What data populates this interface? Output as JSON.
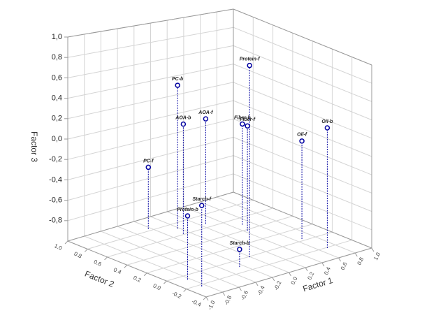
{
  "chart_data": {
    "type": "scatter3d",
    "xlabel": "Factor 1",
    "ylabel": "Factor 2",
    "zlabel": "Factor 3",
    "xlim": [
      -1,
      1
    ],
    "ylim": [
      -0.4,
      1
    ],
    "zlim": [
      -1,
      1
    ],
    "xticks": [
      {
        "value": -1,
        "label": "-1.0"
      },
      -0.8,
      -0.6,
      -0.4,
      -0.2,
      {
        "value": 0,
        "label": "0.0"
      },
      0.2,
      0.4,
      0.6,
      0.8,
      {
        "value": 1,
        "label": "1.0"
      }
    ],
    "yticks": [
      -0.4,
      -0.2,
      {
        "value": 0,
        "label": "0.0"
      },
      0.2,
      0.4,
      0.6,
      0.8,
      {
        "value": 1,
        "label": "1.0"
      }
    ],
    "zticks": [
      {
        "value": -0.8,
        "label": "-0,8"
      },
      {
        "value": -0.6,
        "label": "-0,6"
      },
      {
        "value": -0.4,
        "label": "-0,4"
      },
      {
        "value": -0.2,
        "label": "-0,2"
      },
      {
        "value": 0,
        "label": "0,0"
      },
      {
        "value": 0.2,
        "label": "0,2"
      },
      {
        "value": 0.4,
        "label": "0,4"
      },
      {
        "value": 0.6,
        "label": "0,6"
      },
      {
        "value": 0.8,
        "label": "0,8"
      },
      {
        "value": 1,
        "label": "1,0"
      }
    ],
    "grid": true,
    "color": "#0000a0",
    "labels": [
      "PC-f",
      "PC-b",
      "AOA-b",
      "AOA-f",
      "Fiber-b",
      "Fiber-f",
      "Protein-f",
      "Oil-f",
      "Oil-b",
      "Starch-b",
      "Starch-f",
      "Protein-b"
    ],
    "x": [
      -0.23,
      -0.02,
      -0.07,
      0.26,
      0.5,
      0.43,
      -0.01,
      0.67,
      0.69,
      -0.25,
      -0.85,
      -0.83
    ],
    "y": [
      0.83,
      0.71,
      0.61,
      0.66,
      0.49,
      0.38,
      -0.01,
      0.03,
      -0.21,
      -0.11,
      -0.23,
      -0.07
    ],
    "z": [
      -0.37,
      0.48,
      0.13,
      0.1,
      0.07,
      0.11,
      0.98,
      0.05,
      0.29,
      -0.82,
      -0.2,
      -0.37
    ]
  }
}
